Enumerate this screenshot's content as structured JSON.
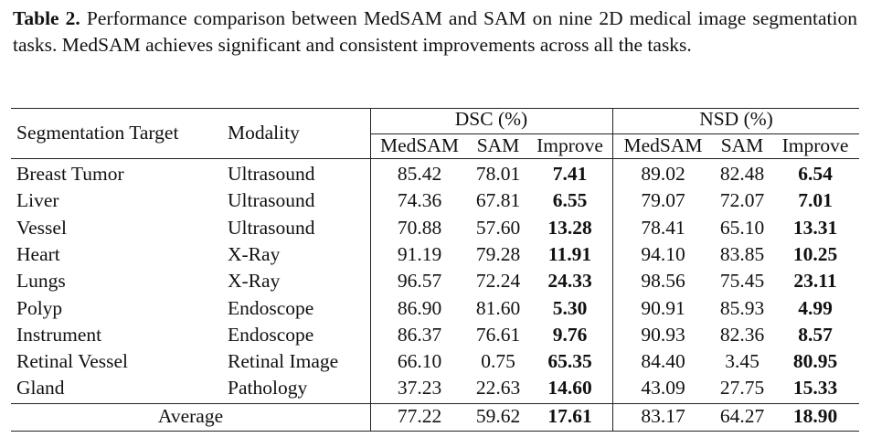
{
  "caption": {
    "label": "Table 2.",
    "text": "Performance comparison between MedSAM and SAM on nine 2D medical image segmentation tasks. MedSAM achieves significant and consistent improvements across all the tasks."
  },
  "table": {
    "header": {
      "target": "Segmentation Target",
      "modality": "Modality",
      "groups": [
        "DSC (%)",
        "NSD (%)"
      ],
      "subcolumns": [
        "MedSAM",
        "SAM",
        "Improve",
        "MedSAM",
        "SAM",
        "Improve"
      ]
    },
    "rows": [
      [
        "Breast Tumor",
        "Ultrasound",
        "85.42",
        "78.01",
        "7.41",
        "89.02",
        "82.48",
        "6.54"
      ],
      [
        "Liver",
        "Ultrasound",
        "74.36",
        "67.81",
        "6.55",
        "79.07",
        "72.07",
        "7.01"
      ],
      [
        "Vessel",
        "Ultrasound",
        "70.88",
        "57.60",
        "13.28",
        "78.41",
        "65.10",
        "13.31"
      ],
      [
        "Heart",
        "X-Ray",
        "91.19",
        "79.28",
        "11.91",
        "94.10",
        "83.85",
        "10.25"
      ],
      [
        "Lungs",
        "X-Ray",
        "96.57",
        "72.24",
        "24.33",
        "98.56",
        "75.45",
        "23.11"
      ],
      [
        "Polyp",
        "Endoscope",
        "86.90",
        "81.60",
        "5.30",
        "90.91",
        "85.93",
        "4.99"
      ],
      [
        "Instrument",
        "Endoscope",
        "86.37",
        "76.61",
        "9.76",
        "90.93",
        "82.36",
        "8.57"
      ],
      [
        "Retinal Vessel",
        "Retinal Image",
        "66.10",
        "0.75",
        "65.35",
        "84.40",
        "3.45",
        "80.95"
      ],
      [
        "Gland",
        "Pathology",
        "37.23",
        "22.63",
        "14.60",
        "43.09",
        "27.75",
        "15.33"
      ]
    ],
    "average": {
      "label": "Average",
      "values": [
        "77.22",
        "59.62",
        "17.61",
        "83.17",
        "64.27",
        "18.90"
      ]
    }
  }
}
